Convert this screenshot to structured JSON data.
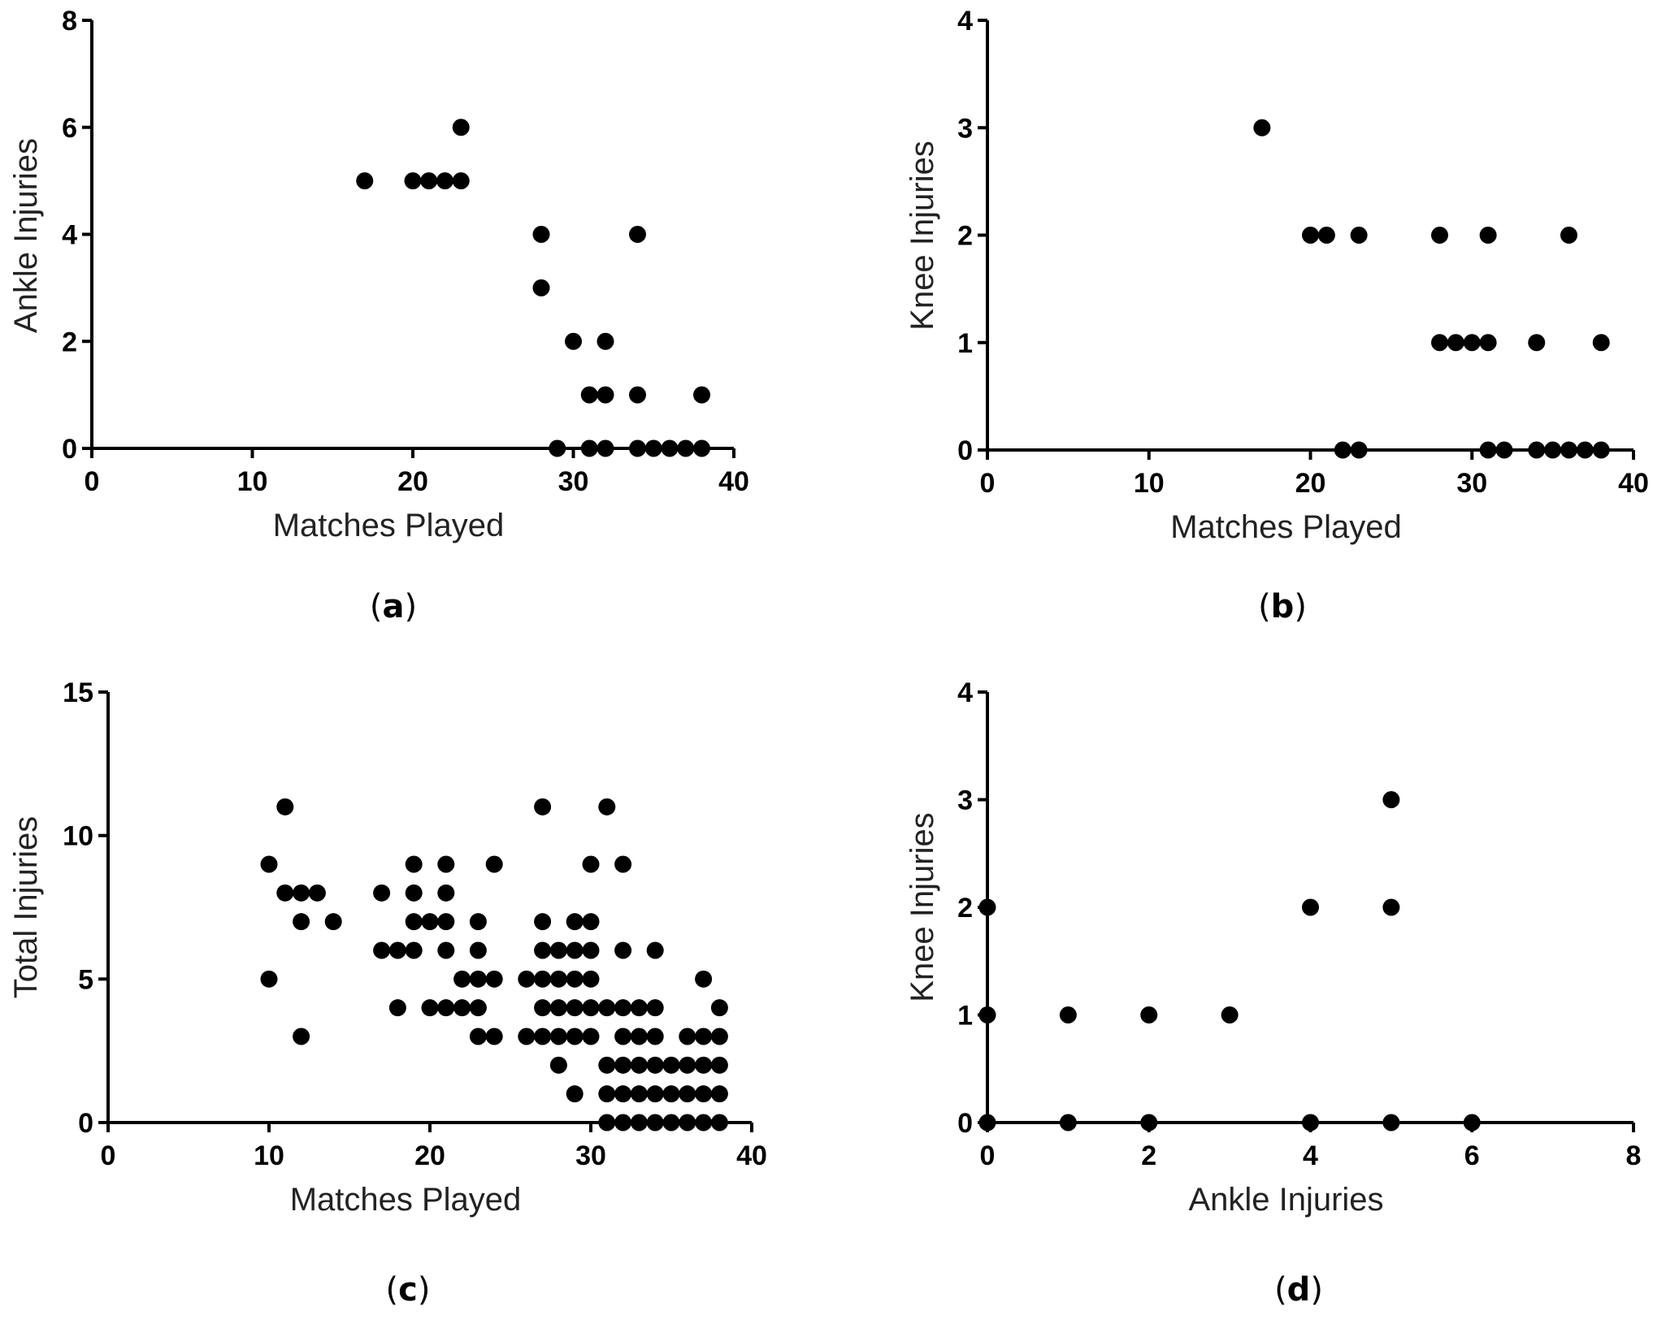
{
  "chart_data": [
    {
      "type": "scatter",
      "panel": "a",
      "panel_label": "a",
      "xlabel": "Matches Played",
      "ylabel": "Ankle Injuries",
      "xlim": [
        0,
        40
      ],
      "ylim": [
        0,
        8
      ],
      "xticks": [
        0,
        10,
        20,
        30,
        40
      ],
      "yticks": [
        0,
        2,
        4,
        6,
        8
      ],
      "points": [
        [
          17,
          5
        ],
        [
          20,
          5
        ],
        [
          21,
          5
        ],
        [
          22,
          5
        ],
        [
          23,
          5
        ],
        [
          23,
          6
        ],
        [
          28,
          4
        ],
        [
          28,
          3
        ],
        [
          29,
          0
        ],
        [
          30,
          2
        ],
        [
          31,
          1
        ],
        [
          31,
          0
        ],
        [
          32,
          2
        ],
        [
          32,
          1
        ],
        [
          32,
          0
        ],
        [
          34,
          4
        ],
        [
          34,
          1
        ],
        [
          34,
          0
        ],
        [
          35,
          0
        ],
        [
          36,
          0
        ],
        [
          37,
          0
        ],
        [
          38,
          1
        ],
        [
          38,
          0
        ]
      ]
    },
    {
      "type": "scatter",
      "panel": "b",
      "panel_label": "b",
      "xlabel": "Matches Played",
      "ylabel": "Knee Injuries",
      "xlim": [
        0,
        40
      ],
      "ylim": [
        0,
        4
      ],
      "xticks": [
        0,
        10,
        20,
        30,
        40
      ],
      "yticks": [
        0,
        1,
        2,
        3,
        4
      ],
      "points": [
        [
          17,
          3
        ],
        [
          20,
          2
        ],
        [
          21,
          2
        ],
        [
          23,
          2
        ],
        [
          22,
          0
        ],
        [
          23,
          0
        ],
        [
          28,
          2
        ],
        [
          28,
          1
        ],
        [
          29,
          1
        ],
        [
          30,
          1
        ],
        [
          31,
          2
        ],
        [
          31,
          1
        ],
        [
          31,
          0
        ],
        [
          32,
          0
        ],
        [
          34,
          1
        ],
        [
          34,
          0
        ],
        [
          35,
          0
        ],
        [
          36,
          2
        ],
        [
          36,
          0
        ],
        [
          37,
          0
        ],
        [
          38,
          1
        ],
        [
          38,
          0
        ]
      ]
    },
    {
      "type": "scatter",
      "panel": "c",
      "panel_label": "c",
      "xlabel": "Matches Played",
      "ylabel": "Total Injuries",
      "xlim": [
        0,
        40
      ],
      "ylim": [
        0,
        15
      ],
      "xticks": [
        0,
        10,
        20,
        30,
        40
      ],
      "yticks": [
        0,
        5,
        10,
        15
      ],
      "points": [
        [
          10,
          9
        ],
        [
          10,
          5
        ],
        [
          11,
          11
        ],
        [
          11,
          8
        ],
        [
          12,
          8
        ],
        [
          12,
          7
        ],
        [
          12,
          3
        ],
        [
          13,
          8
        ],
        [
          14,
          7
        ],
        [
          17,
          8
        ],
        [
          17,
          6
        ],
        [
          18,
          6
        ],
        [
          18,
          4
        ],
        [
          19,
          9
        ],
        [
          19,
          8
        ],
        [
          19,
          7
        ],
        [
          19,
          6
        ],
        [
          20,
          7
        ],
        [
          20,
          4
        ],
        [
          21,
          9
        ],
        [
          21,
          8
        ],
        [
          21,
          7
        ],
        [
          21,
          6
        ],
        [
          21,
          4
        ],
        [
          22,
          5
        ],
        [
          22,
          4
        ],
        [
          23,
          7
        ],
        [
          23,
          6
        ],
        [
          23,
          5
        ],
        [
          23,
          4
        ],
        [
          23,
          3
        ],
        [
          24,
          9
        ],
        [
          24,
          5
        ],
        [
          24,
          3
        ],
        [
          26,
          5
        ],
        [
          26,
          3
        ],
        [
          27,
          11
        ],
        [
          27,
          7
        ],
        [
          27,
          6
        ],
        [
          27,
          5
        ],
        [
          27,
          4
        ],
        [
          27,
          3
        ],
        [
          28,
          6
        ],
        [
          28,
          5
        ],
        [
          28,
          4
        ],
        [
          28,
          3
        ],
        [
          28,
          2
        ],
        [
          29,
          7
        ],
        [
          29,
          6
        ],
        [
          29,
          5
        ],
        [
          29,
          4
        ],
        [
          29,
          3
        ],
        [
          29,
          1
        ],
        [
          30,
          9
        ],
        [
          30,
          7
        ],
        [
          30,
          6
        ],
        [
          30,
          5
        ],
        [
          30,
          4
        ],
        [
          30,
          3
        ],
        [
          31,
          11
        ],
        [
          31,
          4
        ],
        [
          31,
          2
        ],
        [
          31,
          1
        ],
        [
          31,
          0
        ],
        [
          32,
          9
        ],
        [
          32,
          6
        ],
        [
          32,
          4
        ],
        [
          32,
          3
        ],
        [
          32,
          2
        ],
        [
          32,
          1
        ],
        [
          32,
          0
        ],
        [
          33,
          4
        ],
        [
          33,
          3
        ],
        [
          33,
          2
        ],
        [
          33,
          1
        ],
        [
          33,
          0
        ],
        [
          34,
          6
        ],
        [
          34,
          4
        ],
        [
          34,
          3
        ],
        [
          34,
          2
        ],
        [
          34,
          1
        ],
        [
          34,
          0
        ],
        [
          35,
          2
        ],
        [
          35,
          1
        ],
        [
          35,
          0
        ],
        [
          36,
          3
        ],
        [
          36,
          2
        ],
        [
          36,
          1
        ],
        [
          36,
          0
        ],
        [
          37,
          5
        ],
        [
          37,
          3
        ],
        [
          37,
          2
        ],
        [
          37,
          1
        ],
        [
          37,
          0
        ],
        [
          38,
          4
        ],
        [
          38,
          3
        ],
        [
          38,
          2
        ],
        [
          38,
          1
        ],
        [
          38,
          0
        ]
      ]
    },
    {
      "type": "scatter",
      "panel": "d",
      "panel_label": "d",
      "xlabel": "Ankle Injuries",
      "ylabel": "Knee Injuries",
      "xlim": [
        0,
        8
      ],
      "ylim": [
        0,
        4
      ],
      "xticks": [
        0,
        2,
        4,
        6,
        8
      ],
      "yticks": [
        0,
        1,
        2,
        3,
        4
      ],
      "points": [
        [
          0,
          2
        ],
        [
          0,
          1
        ],
        [
          0,
          0
        ],
        [
          1,
          1
        ],
        [
          1,
          0
        ],
        [
          2,
          1
        ],
        [
          2,
          0
        ],
        [
          3,
          1
        ],
        [
          4,
          2
        ],
        [
          4,
          0
        ],
        [
          5,
          3
        ],
        [
          5,
          2
        ],
        [
          5,
          0
        ],
        [
          6,
          0
        ]
      ]
    }
  ]
}
